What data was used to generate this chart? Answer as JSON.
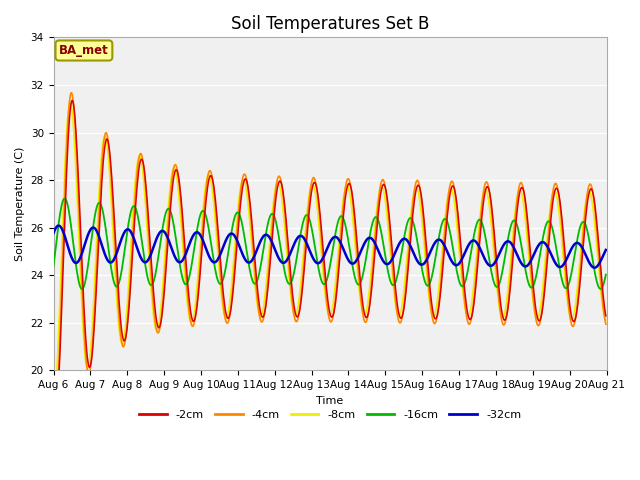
{
  "title": "Soil Temperatures Set B",
  "xlabel": "Time",
  "ylabel": "Soil Temperature (C)",
  "ylim": [
    20,
    34
  ],
  "yticks": [
    20,
    22,
    24,
    26,
    28,
    30,
    32,
    34
  ],
  "annotation": "BA_met",
  "series_colors": {
    "2cm": "#dd0000",
    "4cm": "#ff8800",
    "8cm": "#eeee00",
    "16cm": "#00bb00",
    "32cm": "#0000cc"
  },
  "legend_labels": [
    "-2cm",
    "-4cm",
    "-8cm",
    "-16cm",
    "-32cm"
  ],
  "xtick_labels": [
    "Aug 6",
    "Aug 7",
    "Aug 8",
    "Aug 9",
    "Aug 10",
    "Aug 11",
    "Aug 12",
    "Aug 13",
    "Aug 14",
    "Aug 15",
    "Aug 16",
    "Aug 17",
    "Aug 18",
    "Aug 19",
    "Aug 20",
    "Aug 21"
  ],
  "n_days": 16,
  "pts_per_day": 48,
  "title_fontsize": 12,
  "axis_fontsize": 8,
  "tick_fontsize": 7.5
}
